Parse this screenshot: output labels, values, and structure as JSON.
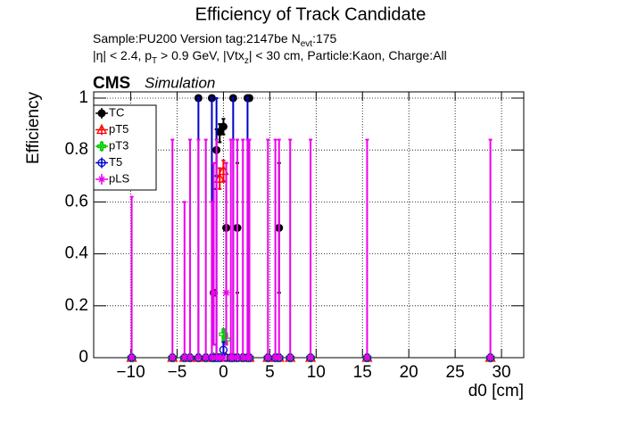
{
  "chart_data": {
    "type": "errorbar",
    "title": "Efficiency of Track Candidate",
    "subtitle_parts": [
      "Sample:PU200   Version tag:2147be  N",
      "evt",
      ":175"
    ],
    "subtitle2_parts": [
      "|η| < 2.4, p",
      "T",
      " > 0.9 GeV, |Vtx",
      "z",
      "| < 30 cm, Particle:Kaon, Charge:All"
    ],
    "experiment": "CMS",
    "experiment_note": "Simulation",
    "xlabel": "d0 [cm]",
    "ylabel": "Efficiency",
    "xlim": [
      -14,
      32.4
    ],
    "ylim": [
      0,
      1.024
    ],
    "xticks": [
      {
        "value": -10,
        "label": "−10"
      },
      {
        "value": -5,
        "label": "−5"
      },
      0,
      5,
      10,
      15,
      20,
      25,
      30
    ],
    "yticks": [
      0,
      0.2,
      0.4,
      0.6,
      0.8,
      1
    ],
    "grid": true,
    "x": [
      -9.9,
      -5.5,
      -4.2,
      -3.6,
      -2.7,
      -1.9,
      -1.25,
      -1.05,
      -0.75,
      -0.4,
      0.0,
      0.3,
      0.8,
      1.05,
      1.5,
      2.1,
      2.6,
      2.8,
      4.8,
      5.6,
      6.0,
      7.2,
      9.4,
      15.5,
      28.8
    ],
    "series": [
      {
        "name": "TC",
        "color": "#000000",
        "marker": "filled-circle",
        "values": [
          0,
          0,
          0,
          0,
          1,
          0,
          1,
          0.25,
          0.8,
          0.87,
          0.89,
          0.5,
          0,
          1,
          0.5,
          0,
          1,
          1,
          0,
          0,
          0.5,
          0,
          0,
          0,
          0
        ],
        "errors": [
          null,
          null,
          null,
          null,
          null,
          null,
          null,
          [
            0.2,
            0.4
          ],
          [
            0.1,
            0.08
          ],
          [
            0.04,
            0.03
          ],
          [
            0.03,
            0.03
          ],
          [
            0.25,
            0.25
          ],
          null,
          null,
          [
            0.25,
            0.25
          ],
          null,
          null,
          null,
          null,
          null,
          [
            0.25,
            0.25
          ],
          null,
          null,
          null,
          null
        ]
      },
      {
        "name": "pT5",
        "color": "#ff0000",
        "marker": "open-triangle",
        "values": [
          0,
          0,
          0,
          0,
          0,
          0,
          0,
          0,
          0,
          0.69,
          0.72,
          0,
          0,
          0,
          0,
          0,
          0,
          0,
          0,
          0,
          0,
          0,
          0,
          0,
          0
        ],
        "errors": [
          null,
          null,
          null,
          null,
          null,
          null,
          null,
          null,
          null,
          [
            0.04,
            0.04
          ],
          [
            0.04,
            0.04
          ],
          null,
          null,
          null,
          null,
          null,
          null,
          null,
          null,
          null,
          null,
          null,
          null,
          null,
          null
        ]
      },
      {
        "name": "pT3",
        "color": "#00cc00",
        "marker": "open-cross",
        "values": [
          0,
          0,
          0,
          0,
          0,
          0,
          0,
          0,
          0,
          0,
          0.09,
          0.07,
          0,
          0,
          0,
          0,
          0,
          0,
          0,
          0,
          0,
          0,
          0,
          0,
          0
        ],
        "errors": [
          null,
          null,
          null,
          null,
          null,
          null,
          null,
          null,
          null,
          null,
          [
            0.02,
            0.02
          ],
          [
            0.02,
            0.02
          ],
          null,
          null,
          null,
          null,
          null,
          null,
          null,
          null,
          null,
          null,
          null,
          null,
          null
        ]
      },
      {
        "name": "T5",
        "color": "#0000cc",
        "marker": "open-circle",
        "values": [
          0,
          0,
          0,
          0,
          0,
          0,
          0,
          0,
          0,
          0,
          0.03,
          0,
          0,
          0,
          0,
          0,
          0,
          0,
          0,
          0,
          0,
          0,
          0,
          0,
          0
        ],
        "errors": [
          null,
          null,
          null,
          null,
          [
            0,
            1
          ],
          null,
          [
            0,
            1
          ],
          null,
          [
            0,
            1
          ],
          null,
          [
            0.02,
            0.03
          ],
          null,
          null,
          [
            0,
            1
          ],
          null,
          null,
          [
            0,
            1
          ],
          null,
          null,
          null,
          null,
          null,
          null,
          null,
          null
        ]
      },
      {
        "name": "pLS",
        "color": "#ee00ee",
        "marker": "star",
        "values": [
          0,
          0,
          0,
          0,
          0,
          0,
          0,
          0.25,
          0,
          0,
          0,
          0.25,
          0,
          0,
          0,
          0,
          0,
          0,
          0,
          0,
          0,
          0,
          0,
          0,
          0
        ],
        "errors": [
          [
            0,
            0.62
          ],
          [
            0,
            0.84
          ],
          [
            0,
            0.6
          ],
          [
            0,
            0.84
          ],
          [
            0,
            0.84
          ],
          [
            0,
            0.84
          ],
          [
            0,
            0.6
          ],
          [
            0.2,
            0.5
          ],
          [
            0,
            0.84
          ],
          null,
          null,
          [
            0.2,
            0.5
          ],
          [
            0,
            0.84
          ],
          [
            0,
            0.84
          ],
          [
            0,
            0.84
          ],
          [
            0,
            0.84
          ],
          [
            0,
            0.84
          ],
          [
            0,
            0.84
          ],
          [
            0,
            0.84
          ],
          [
            0,
            0.84
          ],
          [
            0,
            0.84
          ],
          [
            0,
            0.84
          ],
          [
            0,
            0.84
          ],
          [
            0,
            0.84
          ],
          [
            0,
            0.84
          ]
        ]
      }
    ]
  }
}
